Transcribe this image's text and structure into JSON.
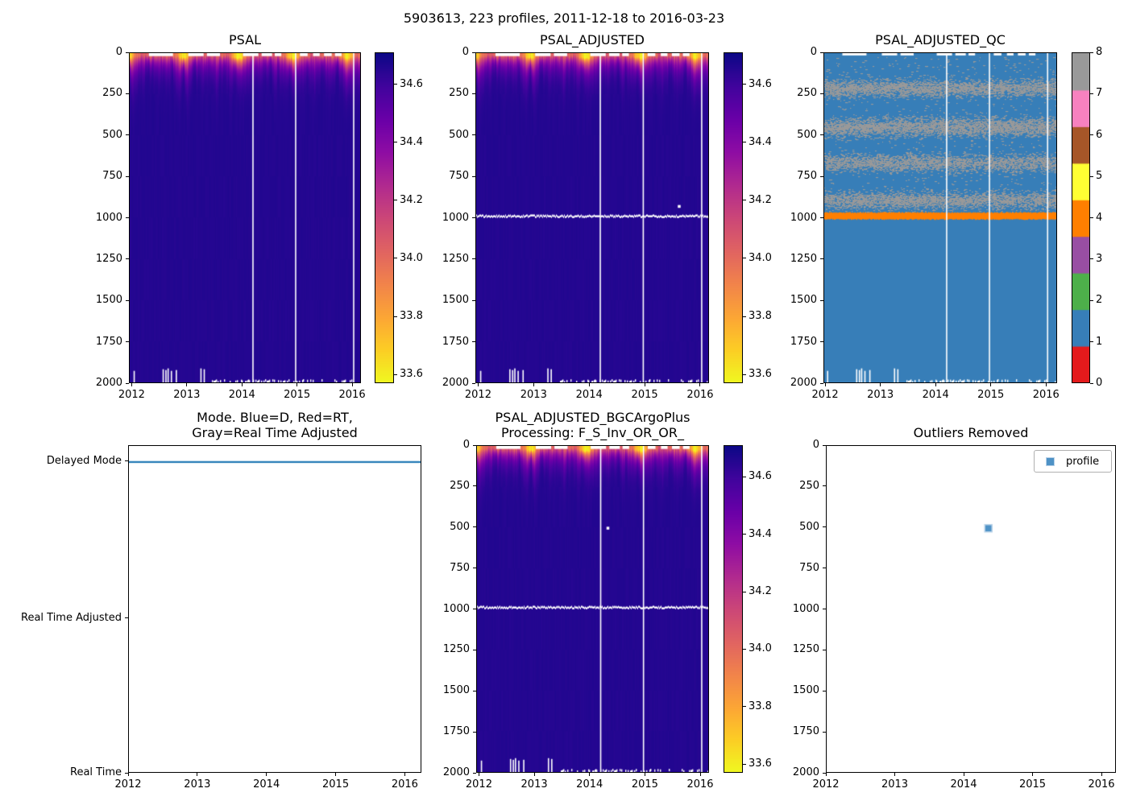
{
  "figure": {
    "suptitle": "5903613, 223 profiles, 2011-12-18 to 2016-03-23",
    "background": "#ffffff"
  },
  "colors": {
    "plasma_stops": [
      "#0d0887",
      "#41049d",
      "#6a00a8",
      "#8f0da4",
      "#b12a90",
      "#cc4778",
      "#e16462",
      "#f2844b",
      "#fca636",
      "#fcce25",
      "#f0f921"
    ],
    "qc_flag_colors": [
      "#e41a1c",
      "#377eb8",
      "#4daf4a",
      "#984ea3",
      "#ff7f00",
      "#ffff33",
      "#a65628",
      "#f781bf",
      "#999999"
    ],
    "mode_line": "#1f77b4",
    "scatter_marker_fill": "#4e92c6",
    "scatter_marker_edge": "#b9d2e8",
    "gap_color": "#ffffff",
    "spine": "#000000"
  },
  "chart_data": [
    {
      "type": "heatmap",
      "title": "PSAL",
      "x_ticks": [
        2012,
        2013,
        2014,
        2015,
        2016
      ],
      "x_range": [
        2011.95,
        2016.16
      ],
      "y_ticks": [
        0,
        250,
        500,
        750,
        1000,
        1250,
        1500,
        1750,
        2000
      ],
      "y_range": [
        0,
        2000
      ],
      "y_inverted": true,
      "colorbar": {
        "colormap": "plasma_r",
        "vmin": 33.57,
        "vmax": 34.71,
        "tick_values": [
          34.6,
          34.4,
          34.2,
          34.0,
          33.8,
          33.6
        ],
        "tick_labels": [
          "34.6",
          "34.4",
          "34.2",
          "34.0",
          "33.8",
          "33.6"
        ]
      },
      "field": {
        "deep_salinity": 34.66,
        "surface_salinity_base": 34.08,
        "seasonal_freshening": 0.5,
        "seasonal_peak_phase": 0.93,
        "mixed_layer_base": 8,
        "thermocline_scale": 45
      },
      "gaps": {
        "vertical_lines_t": [
          2014.19,
          2014.97,
          2016.03
        ],
        "surface_depth": 18,
        "surface_segments": [
          [
            2012.3,
            2012.74
          ],
          [
            2013.02,
            2013.3
          ],
          [
            2013.36,
            2013.6
          ],
          [
            2014.02,
            2014.3
          ],
          [
            2014.36,
            2014.55
          ],
          [
            2014.6,
            2014.72
          ],
          [
            2015.06,
            2015.2
          ],
          [
            2015.3,
            2015.42
          ],
          [
            2015.5,
            2015.64
          ],
          [
            2015.7,
            2015.82
          ]
        ],
        "bottom_notches": [
          {
            "t": 2012.02,
            "from_depth": 1930
          },
          {
            "t": 2012.55,
            "from_depth": 1920
          },
          {
            "t": 2012.6,
            "from_depth": 1925
          },
          {
            "t": 2012.64,
            "from_depth": 1915
          },
          {
            "t": 2012.7,
            "from_depth": 1930
          },
          {
            "t": 2012.79,
            "from_depth": 1925
          },
          {
            "t": 2013.24,
            "from_depth": 1915
          },
          {
            "t": 2013.3,
            "from_depth": 1920
          }
        ],
        "bottom_speckle_from_t": 2013.45
      },
      "masked_depth": null,
      "specks": []
    },
    {
      "type": "heatmap",
      "title": "PSAL_ADJUSTED",
      "x_ticks": [
        2012,
        2013,
        2014,
        2015,
        2016
      ],
      "x_range": [
        2011.95,
        2016.16
      ],
      "y_ticks": [
        0,
        250,
        500,
        750,
        1000,
        1250,
        1500,
        1750,
        2000
      ],
      "y_range": [
        0,
        2000
      ],
      "y_inverted": true,
      "colorbar": {
        "colormap": "plasma_r",
        "vmin": 33.57,
        "vmax": 34.71,
        "tick_values": [
          34.6,
          34.4,
          34.2,
          34.0,
          33.8,
          33.6
        ],
        "tick_labels": [
          "34.6",
          "34.4",
          "34.2",
          "34.0",
          "33.8",
          "33.6"
        ]
      },
      "field": {
        "deep_salinity": 34.66,
        "surface_salinity_base": 34.08,
        "seasonal_freshening": 0.5,
        "seasonal_peak_phase": 0.93,
        "mixed_layer_base": 8,
        "thermocline_scale": 45
      },
      "gaps": {
        "vertical_lines_t": [
          2014.19,
          2014.97,
          2016.03
        ],
        "surface_depth": 18,
        "surface_segments": [
          [
            2012.3,
            2012.74
          ],
          [
            2013.02,
            2013.3
          ],
          [
            2013.36,
            2013.6
          ],
          [
            2014.02,
            2014.3
          ],
          [
            2014.36,
            2014.55
          ],
          [
            2014.6,
            2014.72
          ],
          [
            2015.06,
            2015.2
          ],
          [
            2015.3,
            2015.42
          ],
          [
            2015.5,
            2015.64
          ],
          [
            2015.7,
            2015.82
          ]
        ],
        "bottom_notches": [
          {
            "t": 2012.02,
            "from_depth": 1930
          },
          {
            "t": 2012.55,
            "from_depth": 1920
          },
          {
            "t": 2012.6,
            "from_depth": 1925
          },
          {
            "t": 2012.64,
            "from_depth": 1915
          },
          {
            "t": 2012.7,
            "from_depth": 1930
          },
          {
            "t": 2012.79,
            "from_depth": 1925
          },
          {
            "t": 2013.24,
            "from_depth": 1915
          },
          {
            "t": 2013.3,
            "from_depth": 1920
          }
        ],
        "bottom_speckle_from_t": 2013.45
      },
      "masked_depth": 985,
      "specks": [
        {
          "t": 2015.63,
          "depth": 930
        }
      ]
    },
    {
      "type": "qc_heatmap",
      "title": "PSAL_ADJUSTED_QC",
      "x_ticks": [
        2012,
        2013,
        2014,
        2015,
        2016
      ],
      "x_range": [
        2011.97,
        2016.2
      ],
      "y_ticks": [
        0,
        250,
        500,
        750,
        1000,
        1250,
        1500,
        1750,
        2000
      ],
      "y_range": [
        0,
        2000
      ],
      "y_inverted": true,
      "colorbar": {
        "tick_values": [
          0,
          1,
          2,
          3,
          4,
          5,
          6,
          7,
          8
        ],
        "n_segments": 9
      },
      "base_flag": 1,
      "gray_flag": 8,
      "orange_flag": 4,
      "gray_bands": [
        {
          "center": 215,
          "halfwidth": 42,
          "density": 0.55
        },
        {
          "center": 450,
          "halfwidth": 46,
          "density": 0.55
        },
        {
          "center": 668,
          "halfwidth": 42,
          "density": 0.5
        },
        {
          "center": 895,
          "halfwidth": 42,
          "density": 0.5
        }
      ],
      "sparse_density": 0.015,
      "sparse_depth_range": [
        25,
        975
      ],
      "orange_band": [
        968,
        1010
      ],
      "gaps": {
        "vertical_lines_t": [
          2014.19,
          2014.97,
          2016.03
        ],
        "surface_depth": 14,
        "surface_segments": [
          [
            2012.3,
            2012.74
          ],
          [
            2013.02,
            2013.3
          ],
          [
            2013.36,
            2013.6
          ],
          [
            2014.02,
            2014.3
          ],
          [
            2014.36,
            2014.55
          ],
          [
            2014.6,
            2014.72
          ],
          [
            2015.06,
            2015.2
          ],
          [
            2015.3,
            2015.42
          ],
          [
            2015.5,
            2015.64
          ],
          [
            2015.7,
            2015.82
          ]
        ],
        "bottom_notches": [
          {
            "t": 2012.02,
            "from_depth": 1930
          },
          {
            "t": 2012.55,
            "from_depth": 1920
          },
          {
            "t": 2012.6,
            "from_depth": 1925
          },
          {
            "t": 2012.64,
            "from_depth": 1915
          },
          {
            "t": 2012.7,
            "from_depth": 1930
          },
          {
            "t": 2012.79,
            "from_depth": 1925
          },
          {
            "t": 2013.24,
            "from_depth": 1915
          },
          {
            "t": 2013.3,
            "from_depth": 1920
          }
        ],
        "bottom_speckle_from_t": 2013.45
      }
    },
    {
      "type": "mode_line",
      "title_line1": "Mode. Blue=D, Red=RT,",
      "title_line2": "Gray=Real Time Adjusted",
      "x_ticks": [
        2012,
        2013,
        2014,
        2015,
        2016
      ],
      "x_range": [
        2012.0,
        2016.24
      ],
      "categories": [
        {
          "label": "Delayed Mode",
          "pos": 0.049
        },
        {
          "label": "Real Time Adjusted",
          "pos": 0.528
        },
        {
          "label": "Real Time",
          "pos": 1.0
        }
      ],
      "line": {
        "category": "Delayed Mode",
        "pos": 0.049,
        "span": "full"
      }
    },
    {
      "type": "heatmap",
      "title_line1": "PSAL_ADJUSTED_BGCArgoPlus",
      "title_line2": "Processing: F_S_Inv_OR_OR_",
      "x_ticks": [
        2012,
        2013,
        2014,
        2015,
        2016
      ],
      "x_range": [
        2011.95,
        2016.16
      ],
      "y_ticks": [
        0,
        250,
        500,
        750,
        1000,
        1250,
        1500,
        1750,
        2000
      ],
      "y_range": [
        0,
        2000
      ],
      "y_inverted": true,
      "colorbar": {
        "colormap": "plasma_r",
        "vmin": 33.57,
        "vmax": 34.71,
        "tick_values": [
          34.6,
          34.4,
          34.2,
          34.0,
          33.8,
          33.6
        ],
        "tick_labels": [
          "34.6",
          "34.4",
          "34.2",
          "34.0",
          "33.8",
          "33.6"
        ]
      },
      "field": {
        "deep_salinity": 34.66,
        "surface_salinity_base": 34.08,
        "seasonal_freshening": 0.5,
        "seasonal_peak_phase": 0.93,
        "mixed_layer_base": 8,
        "thermocline_scale": 45
      },
      "gaps": {
        "vertical_lines_t": [
          2014.19,
          2014.97,
          2016.03
        ],
        "surface_depth": 18,
        "surface_segments": [
          [
            2012.3,
            2012.74
          ],
          [
            2013.02,
            2013.3
          ],
          [
            2013.36,
            2013.6
          ],
          [
            2014.02,
            2014.3
          ],
          [
            2014.36,
            2014.55
          ],
          [
            2014.6,
            2014.72
          ],
          [
            2015.06,
            2015.2
          ],
          [
            2015.3,
            2015.42
          ],
          [
            2015.5,
            2015.64
          ],
          [
            2015.7,
            2015.82
          ]
        ],
        "bottom_notches": [
          {
            "t": 2012.02,
            "from_depth": 1930
          },
          {
            "t": 2012.55,
            "from_depth": 1920
          },
          {
            "t": 2012.6,
            "from_depth": 1925
          },
          {
            "t": 2012.64,
            "from_depth": 1915
          },
          {
            "t": 2012.7,
            "from_depth": 1930
          },
          {
            "t": 2012.79,
            "from_depth": 1925
          },
          {
            "t": 2013.24,
            "from_depth": 1915
          },
          {
            "t": 2013.3,
            "from_depth": 1920
          }
        ],
        "bottom_speckle_from_t": 2013.45
      },
      "masked_depth": 985,
      "specks": [
        {
          "t": 2014.33,
          "depth": 503
        }
      ]
    },
    {
      "type": "scatter",
      "title": "Outliers Removed",
      "x_ticks": [
        2012,
        2013,
        2014,
        2015,
        2016
      ],
      "x_range": [
        2012.0,
        2016.21
      ],
      "y_ticks": [
        0,
        250,
        500,
        750,
        1000,
        1250,
        1500,
        1750,
        2000
      ],
      "y_range": [
        0,
        2000
      ],
      "y_inverted": true,
      "legend": {
        "label": "profile"
      },
      "points": [
        {
          "x": 2014.36,
          "y": 505
        }
      ]
    }
  ]
}
